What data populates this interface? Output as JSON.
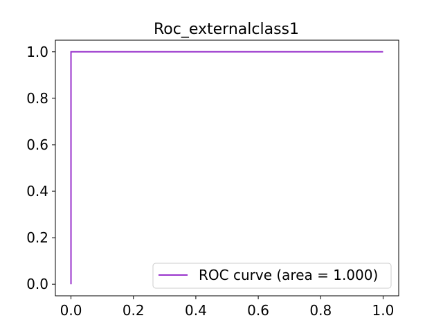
{
  "chart_data": {
    "type": "line",
    "title": "Roc_externalclass1",
    "xlabel": "",
    "ylabel": "",
    "xlim": [
      -0.05,
      1.05
    ],
    "ylim": [
      -0.05,
      1.05
    ],
    "xticks": [
      0.0,
      0.2,
      0.4,
      0.6,
      0.8,
      1.0
    ],
    "xtick_labels": [
      "0.0",
      "0.2",
      "0.4",
      "0.6",
      "0.8",
      "1.0"
    ],
    "yticks": [
      0.0,
      0.2,
      0.4,
      0.6,
      0.8,
      1.0
    ],
    "ytick_labels": [
      "0.0",
      "0.2",
      "0.4",
      "0.6",
      "0.8",
      "1.0"
    ],
    "grid": false,
    "legend_position": "bottom-right",
    "series": [
      {
        "name": "ROC curve (area = 1.000)",
        "color": "#9933cc",
        "x": [
          0.0,
          0.0,
          1.0
        ],
        "y": [
          0.0,
          1.0,
          1.0
        ]
      }
    ]
  }
}
